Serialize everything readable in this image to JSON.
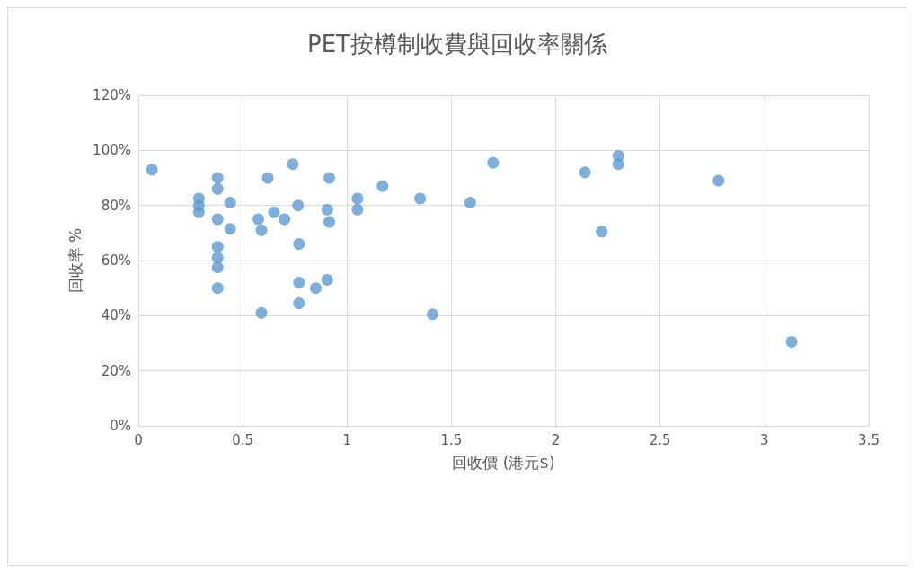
{
  "chart_data": {
    "type": "scatter",
    "title": "PET按樽制收費與回收率關係",
    "xlabel": "回收價 (港元$)",
    "ylabel": "回收率 %",
    "x": [
      0.065,
      0.29,
      0.29,
      0.29,
      0.38,
      0.38,
      0.38,
      0.38,
      0.38,
      0.38,
      0.38,
      0.44,
      0.44,
      0.575,
      0.59,
      0.59,
      0.62,
      0.65,
      0.7,
      0.74,
      0.765,
      0.77,
      0.77,
      0.77,
      0.85,
      0.905,
      0.905,
      0.915,
      0.915,
      1.05,
      1.05,
      1.17,
      1.35,
      1.41,
      1.59,
      1.7,
      2.14,
      2.22,
      2.3,
      2.3,
      2.78,
      3.13
    ],
    "values": [
      93,
      82.5,
      80,
      77.5,
      90,
      86,
      75,
      65,
      61,
      57.5,
      50,
      81,
      71.5,
      75,
      71,
      41,
      90,
      77.5,
      75,
      95,
      80,
      66,
      52,
      44.5,
      50,
      53,
      78.5,
      90,
      74,
      82.5,
      78.5,
      87,
      82.5,
      40.5,
      81,
      95.5,
      92,
      70.5,
      98,
      95,
      89,
      30.5
    ],
    "color": "#5b9bd5",
    "marker": "circle",
    "grid": true,
    "xlim": [
      0,
      3.5
    ],
    "xticks": [
      0,
      0.5,
      1,
      1.5,
      2,
      2.5,
      3,
      3.5
    ],
    "ylim": [
      0,
      120
    ],
    "yticks": [
      {
        "value": 0,
        "label": "0%"
      },
      {
        "value": 20,
        "label": "20%"
      },
      {
        "value": 40,
        "label": "40%"
      },
      {
        "value": 60,
        "label": "60%"
      },
      {
        "value": 80,
        "label": "80%"
      },
      {
        "value": 100,
        "label": "100%"
      },
      {
        "value": 120,
        "label": "120%"
      }
    ]
  }
}
